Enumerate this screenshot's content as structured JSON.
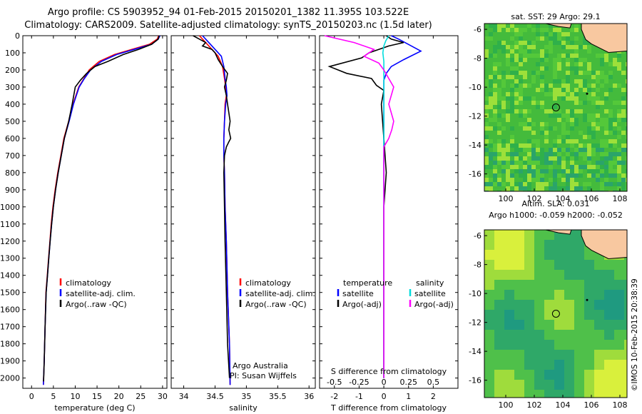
{
  "header": {
    "line1": "Argo profile: CS 5903952_94 01-Feb-2015 20150201_1382 11.395S 103.522E",
    "line2": "Climatology: CARS2009. Satellite-adjusted climatology: synTS_20150203.nc (1.5d later)"
  },
  "credit": "©IMOS 10-Feb-2015 20:38:39",
  "chart_data": [
    {
      "type": "line",
      "panel": "temperature",
      "xlabel": "temperature (deg C)",
      "xlim": [
        -2,
        31
      ],
      "xticks": [
        0,
        5,
        10,
        15,
        20,
        25,
        30
      ],
      "ylim": [
        0,
        2060
      ],
      "yreverse": true,
      "yticks": [
        0,
        100,
        200,
        300,
        400,
        500,
        600,
        700,
        800,
        900,
        1000,
        1100,
        1200,
        1300,
        1400,
        1500,
        1600,
        1700,
        1800,
        1900,
        2000
      ],
      "legend": [
        "climatology",
        "satellite-adj. clim.",
        "Argo(..raw -QC)"
      ],
      "series": [
        {
          "name": "climatology",
          "color": "#ff0000",
          "x": [
            29.1,
            28.8,
            27,
            23,
            19,
            15.5,
            13.2,
            12,
            10.8,
            9.5,
            8.5,
            7.4,
            6.7,
            6,
            5.4,
            4.9,
            4.5,
            4.2,
            3.9,
            3.6,
            3.3,
            3.1,
            2.9,
            2.7
          ],
          "y": [
            0,
            20,
            50,
            80,
            110,
            150,
            200,
            250,
            300,
            400,
            500,
            600,
            700,
            800,
            900,
            1000,
            1100,
            1200,
            1300,
            1400,
            1500,
            1700,
            1900,
            2040
          ]
        },
        {
          "name": "satellite-adj. clim.",
          "color": "#0000ff",
          "x": [
            29.4,
            29,
            27.5,
            23.5,
            19.5,
            16,
            13.5,
            12.1,
            10.9,
            9.6,
            8.6,
            7.5,
            6.8,
            6.1,
            5.5,
            5,
            4.6,
            4.25,
            3.95,
            3.65,
            3.35,
            3.1,
            2.9,
            2.7
          ],
          "y": [
            0,
            20,
            50,
            80,
            110,
            150,
            200,
            250,
            300,
            400,
            500,
            600,
            700,
            800,
            900,
            1000,
            1100,
            1200,
            1300,
            1400,
            1500,
            1700,
            1900,
            2040
          ]
        },
        {
          "name": "Argo(..raw -QC)",
          "color": "#000000",
          "x": [
            29.2,
            29,
            27.5,
            24.5,
            21,
            17.5,
            14.5,
            12.6,
            11.2,
            10,
            9.3,
            8.5,
            7.5,
            6.8,
            6.1,
            5.5,
            5,
            4.6,
            4.25,
            3.95,
            3.65,
            3.35,
            3.1,
            2.9,
            2.75
          ],
          "y": [
            0,
            20,
            50,
            80,
            110,
            150,
            180,
            220,
            260,
            300,
            400,
            500,
            600,
            700,
            800,
            900,
            1000,
            1100,
            1200,
            1300,
            1400,
            1500,
            1700,
            1900,
            2020
          ]
        }
      ]
    },
    {
      "type": "line",
      "panel": "salinity",
      "xlabel": "salinity",
      "xlim": [
        33.8,
        36.1
      ],
      "xticks": [
        34,
        34.5,
        35,
        35.5,
        36
      ],
      "xticklabels": [
        "34",
        "34.5",
        "35",
        "35.5",
        "36"
      ],
      "ylim": [
        0,
        2060
      ],
      "yreverse": true,
      "legend": [
        "climatology",
        "satellite-adj. clim.",
        "Argo(..raw -QC)"
      ],
      "annotation": [
        "Argo Australia",
        "PI: Susan Wijffels"
      ],
      "series": [
        {
          "name": "climatology",
          "color": "#ff0000",
          "x": [
            34.25,
            34.35,
            34.45,
            34.55,
            34.62,
            34.65,
            34.67,
            34.68,
            34.66,
            34.65,
            34.64,
            34.64,
            34.65,
            34.66,
            34.68,
            34.7,
            34.73,
            34.74
          ],
          "y": [
            0,
            40,
            80,
            120,
            180,
            250,
            300,
            350,
            400,
            500,
            600,
            700,
            800,
            1000,
            1200,
            1500,
            1800,
            2040
          ]
        },
        {
          "name": "satellite-adj. clim.",
          "color": "#0000ff",
          "x": [
            34.3,
            34.4,
            34.5,
            34.6,
            34.64,
            34.66,
            34.68,
            34.69,
            34.67,
            34.65,
            34.64,
            34.64,
            34.65,
            34.66,
            34.68,
            34.7,
            34.73,
            34.74
          ],
          "y": [
            0,
            40,
            80,
            120,
            180,
            250,
            300,
            350,
            400,
            500,
            600,
            700,
            800,
            1000,
            1200,
            1500,
            1800,
            2040
          ]
        },
        {
          "name": "Argo(..raw -QC)",
          "color": "#000000",
          "x": [
            34.15,
            34.25,
            34.35,
            34.3,
            34.45,
            34.5,
            34.55,
            34.62,
            34.7,
            34.68,
            34.65,
            34.68,
            34.7,
            34.72,
            34.74,
            34.72,
            34.75,
            34.72,
            34.68,
            34.65,
            34.64,
            34.65,
            34.66,
            34.68,
            34.7,
            34.73
          ],
          "y": [
            0,
            20,
            40,
            60,
            80,
            100,
            140,
            180,
            220,
            260,
            300,
            350,
            400,
            450,
            500,
            550,
            600,
            620,
            650,
            700,
            800,
            1000,
            1200,
            1500,
            1800,
            2000
          ]
        }
      ]
    },
    {
      "type": "line",
      "panel": "differences",
      "xlabel": "T difference from climatology",
      "xlabel2": "S difference from climatology",
      "xlim": [
        -2.6,
        3
      ],
      "xticks": [
        -2,
        -1,
        0,
        1,
        2
      ],
      "xticks2": [
        -0.5,
        -0.25,
        0,
        0.25,
        0.5
      ],
      "xticks2labels": [
        "-0.5",
        "-0.25",
        "0",
        "0.25",
        "0.5"
      ],
      "ylim": [
        0,
        2060
      ],
      "yreverse": true,
      "legend": [
        "temperature",
        "satellite",
        "Argo(-adj)",
        "salinity",
        "satellite",
        "Argo(-adj)"
      ],
      "series": [
        {
          "name": "temperature satellite",
          "color": "#0000ff",
          "x": [
            0.3,
            0.6,
            1.5,
            0.8,
            0.3,
            0.1,
            0,
            0,
            0,
            0,
            0
          ],
          "y": [
            0,
            20,
            90,
            140,
            180,
            220,
            260,
            400,
            800,
            1400,
            2000
          ]
        },
        {
          "name": "temperature Argo(-adj)",
          "color": "#000000",
          "x": [
            0.1,
            0.3,
            0.8,
            0.2,
            -0.6,
            -0.9,
            -2.2,
            -1.5,
            -0.5,
            -0.3,
            0,
            -0.1,
            0,
            0.1,
            0,
            0,
            0
          ],
          "y": [
            0,
            20,
            40,
            60,
            100,
            130,
            180,
            220,
            250,
            290,
            320,
            400,
            600,
            800,
            1000,
            1400,
            2000
          ]
        },
        {
          "name": "salinity satellite",
          "color": "#00dddd",
          "x": [
            0.05,
            0.02,
            0,
            -0.01,
            0,
            0,
            0,
            0,
            0,
            0
          ],
          "y": [
            0,
            30,
            60,
            100,
            150,
            200,
            400,
            800,
            1400,
            2000
          ]
        },
        {
          "name": "salinity Argo(-adj)",
          "color": "#ff00ff",
          "x": [
            -0.6,
            -0.3,
            -0.1,
            -0.2,
            -0.05,
            0,
            0.05,
            0.1,
            0.05,
            0.1,
            0.08,
            0.05,
            0,
            0,
            0
          ],
          "y": [
            0,
            40,
            80,
            120,
            160,
            200,
            250,
            300,
            400,
            500,
            550,
            600,
            650,
            800,
            2000
          ]
        }
      ]
    },
    {
      "type": "heatmap",
      "panel": "sst-map",
      "title": "sat. SST: 29 Argo: 29.1",
      "xlim": [
        98.5,
        108.5
      ],
      "xticks": [
        100,
        102,
        104,
        106,
        108
      ],
      "ylim": [
        -17.2,
        -5.6
      ],
      "yticks": [
        -6,
        -8,
        -10,
        -12,
        -14,
        -16
      ],
      "argo": [
        103.52,
        -11.4
      ]
    },
    {
      "type": "heatmap",
      "panel": "sla-map",
      "title": "Altim. SLA: 0.031",
      "subtitle": "Argo h1000: -0.059 h2000: -0.052",
      "xlim": [
        98.5,
        108.5
      ],
      "xticks": [
        100,
        102,
        104,
        106,
        108
      ],
      "ylim": [
        -17.2,
        -5.6
      ],
      "yticks": [
        -6,
        -8,
        -10,
        -12,
        -14,
        -16
      ],
      "argo": [
        103.52,
        -11.4
      ]
    }
  ]
}
